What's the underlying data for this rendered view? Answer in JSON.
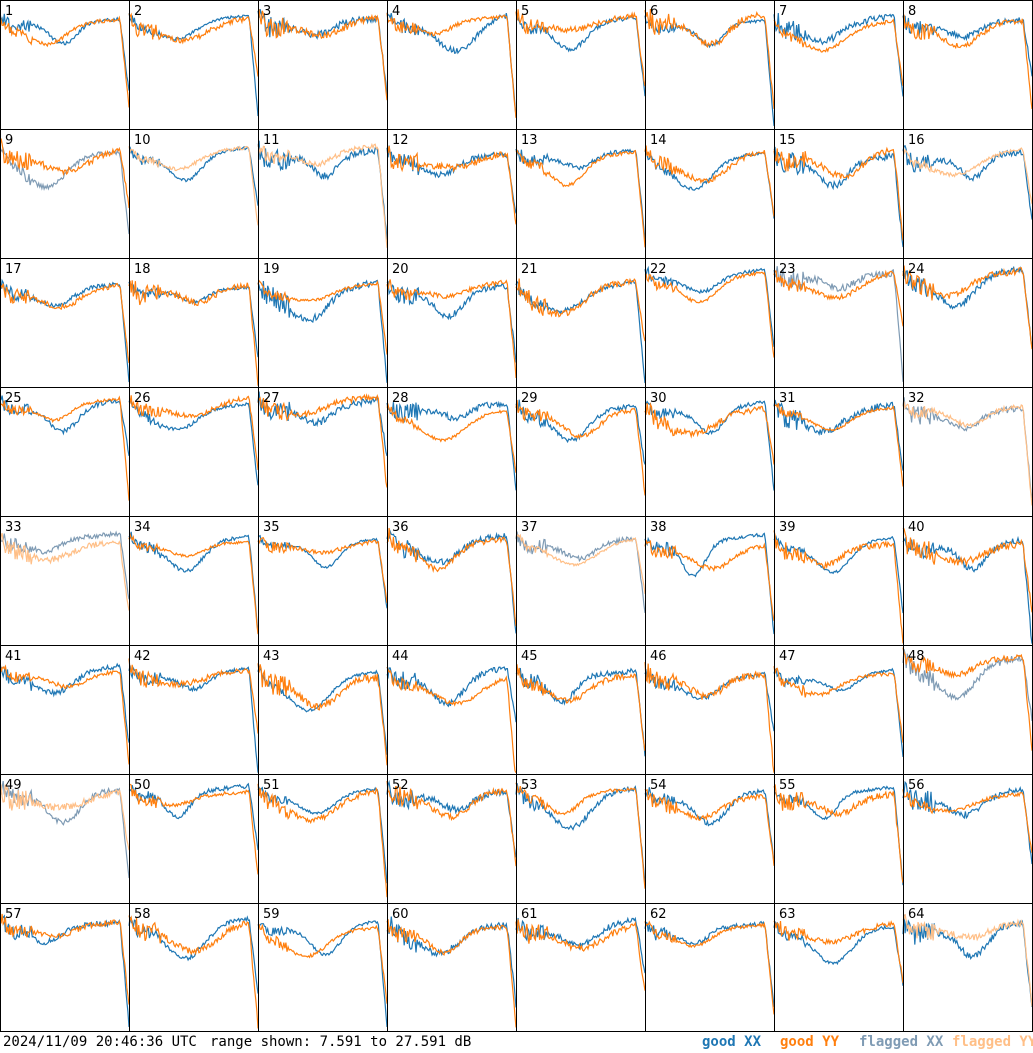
{
  "footer": {
    "timestamp": "2024/11/09 20:46:36 UTC",
    "range_text": "range shown: 7.591 to 27.591 dB"
  },
  "legend": [
    {
      "label": "good XX",
      "color": "#1f77b4"
    },
    {
      "label": "good YY",
      "color": "#ff7f0e"
    },
    {
      "label": "flagged XX",
      "color": "#7f9bb4"
    },
    {
      "label": "flagged YY",
      "color": "#ffbf87"
    }
  ],
  "colors": {
    "good_xx": "#1f77b4",
    "good_yy": "#ff7f0e",
    "flagged_xx": "#7f9bb4",
    "flagged_yy": "#ffbf87"
  },
  "chart_data": {
    "type": "line",
    "description_units": "dB",
    "ylim": [
      7.591,
      27.591
    ],
    "grid": "8x8 small multiples",
    "panels": [
      {
        "id": "1",
        "xx": "good",
        "yy": "good"
      },
      {
        "id": "2",
        "xx": "good",
        "yy": "good"
      },
      {
        "id": "3",
        "xx": "good",
        "yy": "good"
      },
      {
        "id": "4",
        "xx": "good",
        "yy": "good"
      },
      {
        "id": "5",
        "xx": "good",
        "yy": "good"
      },
      {
        "id": "6",
        "xx": "good",
        "yy": "good"
      },
      {
        "id": "7",
        "xx": "good",
        "yy": "good"
      },
      {
        "id": "8",
        "xx": "good",
        "yy": "good"
      },
      {
        "id": "9",
        "xx": "flagged",
        "yy": "good"
      },
      {
        "id": "10",
        "xx": "good",
        "yy": "flagged"
      },
      {
        "id": "11",
        "xx": "good",
        "yy": "flagged"
      },
      {
        "id": "12",
        "xx": "good",
        "yy": "good"
      },
      {
        "id": "13",
        "xx": "good",
        "yy": "good"
      },
      {
        "id": "14",
        "xx": "good",
        "yy": "good"
      },
      {
        "id": "15",
        "xx": "good",
        "yy": "good"
      },
      {
        "id": "16",
        "xx": "good",
        "yy": "flagged"
      },
      {
        "id": "17",
        "xx": "good",
        "yy": "good"
      },
      {
        "id": "18",
        "xx": "good",
        "yy": "good"
      },
      {
        "id": "19",
        "xx": "good",
        "yy": "good"
      },
      {
        "id": "20",
        "xx": "good",
        "yy": "good"
      },
      {
        "id": "21",
        "xx": "good",
        "yy": "good"
      },
      {
        "id": "22",
        "xx": "good",
        "yy": "good"
      },
      {
        "id": "23",
        "xx": "flagged",
        "yy": "good"
      },
      {
        "id": "24",
        "xx": "good",
        "yy": "good"
      },
      {
        "id": "25",
        "xx": "good",
        "yy": "good"
      },
      {
        "id": "26",
        "xx": "good",
        "yy": "good"
      },
      {
        "id": "27",
        "xx": "good",
        "yy": "good"
      },
      {
        "id": "28",
        "xx": "good",
        "yy": "good"
      },
      {
        "id": "29",
        "xx": "good",
        "yy": "good"
      },
      {
        "id": "30",
        "xx": "good",
        "yy": "good"
      },
      {
        "id": "31",
        "xx": "good",
        "yy": "good"
      },
      {
        "id": "32",
        "xx": "flagged",
        "yy": "flagged"
      },
      {
        "id": "33",
        "xx": "flagged",
        "yy": "flagged"
      },
      {
        "id": "34",
        "xx": "good",
        "yy": "good"
      },
      {
        "id": "35",
        "xx": "good",
        "yy": "good"
      },
      {
        "id": "36",
        "xx": "good",
        "yy": "good"
      },
      {
        "id": "37",
        "xx": "flagged",
        "yy": "flagged"
      },
      {
        "id": "38",
        "xx": "good",
        "yy": "good"
      },
      {
        "id": "39",
        "xx": "good",
        "yy": "good"
      },
      {
        "id": "40",
        "xx": "good",
        "yy": "good"
      },
      {
        "id": "41",
        "xx": "good",
        "yy": "good"
      },
      {
        "id": "42",
        "xx": "good",
        "yy": "good"
      },
      {
        "id": "43",
        "xx": "good",
        "yy": "good"
      },
      {
        "id": "44",
        "xx": "good",
        "yy": "good"
      },
      {
        "id": "45",
        "xx": "good",
        "yy": "good"
      },
      {
        "id": "46",
        "xx": "good",
        "yy": "good"
      },
      {
        "id": "47",
        "xx": "good",
        "yy": "good"
      },
      {
        "id": "48",
        "xx": "flagged",
        "yy": "good"
      },
      {
        "id": "49",
        "xx": "flagged",
        "yy": "flagged"
      },
      {
        "id": "50",
        "xx": "good",
        "yy": "good"
      },
      {
        "id": "51",
        "xx": "good",
        "yy": "good"
      },
      {
        "id": "52",
        "xx": "good",
        "yy": "good"
      },
      {
        "id": "53",
        "xx": "good",
        "yy": "good"
      },
      {
        "id": "54",
        "xx": "good",
        "yy": "good"
      },
      {
        "id": "55",
        "xx": "good",
        "yy": "good"
      },
      {
        "id": "56",
        "xx": "good",
        "yy": "good"
      },
      {
        "id": "57",
        "xx": "good",
        "yy": "good"
      },
      {
        "id": "58",
        "xx": "good",
        "yy": "good"
      },
      {
        "id": "59",
        "xx": "good",
        "yy": "good"
      },
      {
        "id": "60",
        "xx": "good",
        "yy": "good"
      },
      {
        "id": "61",
        "xx": "good",
        "yy": "good"
      },
      {
        "id": "62",
        "xx": "good",
        "yy": "good"
      },
      {
        "id": "63",
        "xx": "good",
        "yy": "good"
      },
      {
        "id": "64",
        "xx": "good",
        "yy": "flagged"
      }
    ]
  }
}
